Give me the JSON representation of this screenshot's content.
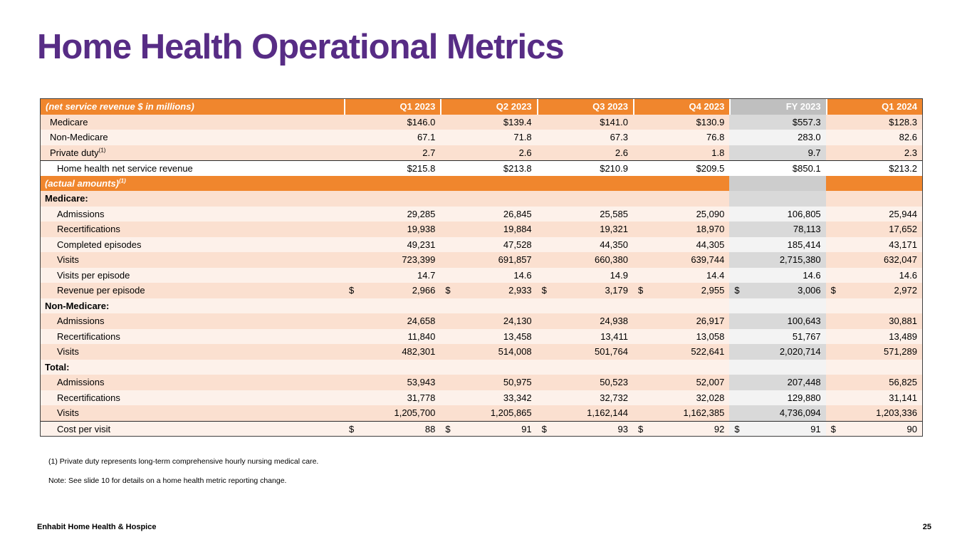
{
  "page": {
    "title": "Home Health Operational Metrics",
    "footer_brand": "Enhabit Home Health & Hospice",
    "page_number": "25"
  },
  "colors": {
    "title_purple": "#572C85",
    "header_orange": "#F0862D",
    "fy_header_gray": "#BFBFBF",
    "stripe_dark": "#FBE0D0",
    "stripe_light": "#FDF1EA",
    "fy_dark": "#D9D9D9"
  },
  "footnotes": [
    "(1) Private duty represents long-term comprehensive hourly nursing medical care.",
    "Note: See slide 10 for details on a home health metric reporting change."
  ],
  "table": {
    "header": {
      "label": "(net service revenue $ in millions)",
      "columns": [
        "Q1 2023",
        "Q2 2023",
        "Q3 2023",
        "Q4 2023",
        "FY 2023",
        "Q1 2024"
      ]
    },
    "rows": [
      {
        "label": "Medicare",
        "indent": 1,
        "shade": "dark",
        "values": [
          "$146.0",
          "$139.4",
          "$141.0",
          "$130.9",
          "$557.3",
          "$128.3"
        ]
      },
      {
        "label": "Non-Medicare",
        "indent": 1,
        "shade": "light",
        "values": [
          "67.1",
          "71.8",
          "67.3",
          "76.8",
          "283.0",
          "82.6"
        ]
      },
      {
        "label": "Private duty",
        "sup": "(1)",
        "indent": 1,
        "shade": "dark",
        "values": [
          "2.7",
          "2.6",
          "2.6",
          "1.8",
          "9.7",
          "2.3"
        ]
      },
      {
        "label": "Home health net service revenue",
        "indent": 2,
        "shade": "white",
        "topline": true,
        "values": [
          "$215.8",
          "$213.8",
          "$210.9",
          "$209.5",
          "$850.1",
          "$213.2"
        ]
      },
      {
        "label": "(actual amounts)",
        "sup": "(1)",
        "indent": 0,
        "shade": "band",
        "values": []
      },
      {
        "label": "Medicare:",
        "indent": 0,
        "bold": true,
        "shade": "dark",
        "values": []
      },
      {
        "label": "Admissions",
        "indent": 2,
        "shade": "light",
        "values": [
          "29,285",
          "26,845",
          "25,585",
          "25,090",
          "106,805",
          "25,944"
        ]
      },
      {
        "label": "Recertifications",
        "indent": 2,
        "shade": "dark",
        "values": [
          "19,938",
          "19,884",
          "19,321",
          "18,970",
          "78,113",
          "17,652"
        ]
      },
      {
        "label": "Completed episodes",
        "indent": 2,
        "shade": "light",
        "values": [
          "49,231",
          "47,528",
          "44,350",
          "44,305",
          "185,414",
          "43,171"
        ]
      },
      {
        "label": "Visits",
        "indent": 2,
        "shade": "dark",
        "values": [
          "723,399",
          "691,857",
          "660,380",
          "639,744",
          "2,715,380",
          "632,047"
        ]
      },
      {
        "label": "Visits per episode",
        "indent": 2,
        "shade": "light",
        "values": [
          "14.7",
          "14.6",
          "14.9",
          "14.4",
          "14.6",
          "14.6"
        ]
      },
      {
        "label": "Revenue per episode",
        "indent": 2,
        "shade": "dark",
        "dollar": true,
        "values": [
          "2,966",
          "2,933",
          "3,179",
          "2,955",
          "3,006",
          "2,972"
        ]
      },
      {
        "label": "Non-Medicare:",
        "indent": 0,
        "bold": true,
        "shade": "light",
        "values": []
      },
      {
        "label": "Admissions",
        "indent": 2,
        "shade": "dark",
        "values": [
          "24,658",
          "24,130",
          "24,938",
          "26,917",
          "100,643",
          "30,881"
        ]
      },
      {
        "label": "Recertifications",
        "indent": 2,
        "shade": "light",
        "values": [
          "11,840",
          "13,458",
          "13,411",
          "13,058",
          "51,767",
          "13,489"
        ]
      },
      {
        "label": "Visits",
        "indent": 2,
        "shade": "dark",
        "values": [
          "482,301",
          "514,008",
          "501,764",
          "522,641",
          "2,020,714",
          "571,289"
        ]
      },
      {
        "label": "Total:",
        "indent": 0,
        "bold": true,
        "shade": "light",
        "values": []
      },
      {
        "label": "Admissions",
        "indent": 2,
        "shade": "dark",
        "values": [
          "53,943",
          "50,975",
          "50,523",
          "52,007",
          "207,448",
          "56,825"
        ]
      },
      {
        "label": "Recertifications",
        "indent": 2,
        "shade": "light",
        "values": [
          "31,778",
          "33,342",
          "32,732",
          "32,028",
          "129,880",
          "31,141"
        ]
      },
      {
        "label": "Visits",
        "indent": 2,
        "shade": "dark",
        "values": [
          "1,205,700",
          "1,205,865",
          "1,162,144",
          "1,162,385",
          "4,736,094",
          "1,203,336"
        ]
      },
      {
        "label": "Cost per visit",
        "indent": 2,
        "shade": "light",
        "dollar": true,
        "topline": true,
        "values": [
          "88",
          "91",
          "93",
          "92",
          "91",
          "90"
        ]
      }
    ]
  }
}
